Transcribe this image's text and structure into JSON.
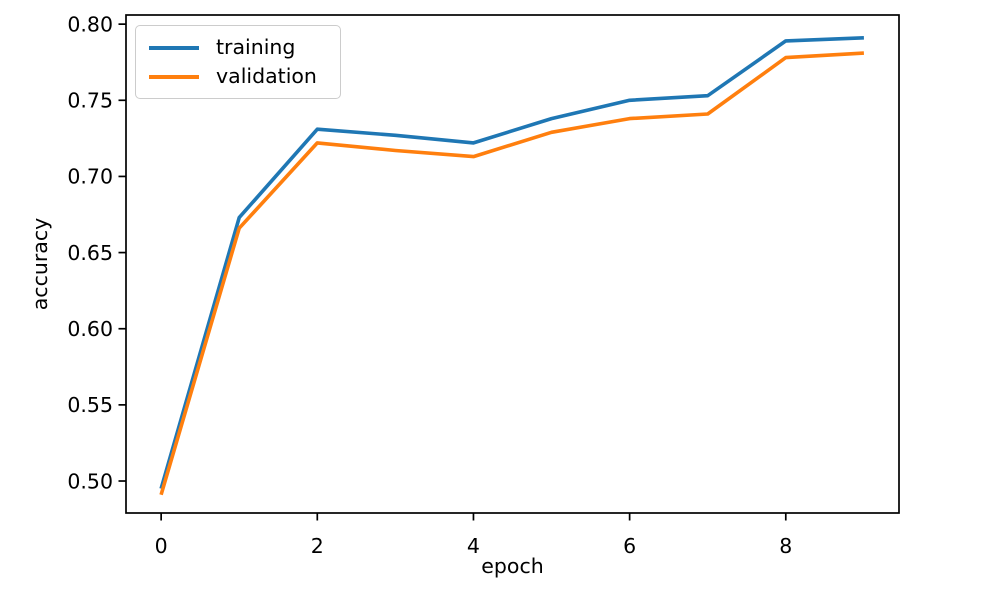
{
  "figure": {
    "background": "#ffffff",
    "axes_color": "#000000",
    "text_color": "#000000",
    "legend_border_color": "#cccccc"
  },
  "chart_data": {
    "type": "line",
    "title": "",
    "xlabel": "epoch",
    "ylabel": "accuracy",
    "grid": false,
    "legend_position": "upper left",
    "x": [
      0,
      1,
      2,
      3,
      4,
      5,
      6,
      7,
      8,
      9
    ],
    "series": [
      {
        "name": "training",
        "color": "#1f77b4",
        "values": [
          0.495,
          0.673,
          0.731,
          0.727,
          0.722,
          0.738,
          0.75,
          0.753,
          0.789,
          0.791
        ]
      },
      {
        "name": "validation",
        "color": "#ff7f0e",
        "values": [
          0.491,
          0.666,
          0.722,
          0.717,
          0.713,
          0.729,
          0.738,
          0.741,
          0.778,
          0.781
        ]
      }
    ],
    "xlim": [
      -0.45,
      9.45
    ],
    "ylim": [
      0.479,
      0.806
    ],
    "xticks": [
      0,
      2,
      4,
      6,
      8
    ],
    "xtick_labels": [
      "0",
      "2",
      "4",
      "6",
      "8"
    ],
    "yticks": [
      0.5,
      0.55,
      0.6,
      0.65,
      0.7,
      0.75,
      0.8
    ],
    "ytick_labels": [
      "0.50",
      "0.55",
      "0.60",
      "0.65",
      "0.70",
      "0.75",
      "0.80"
    ]
  }
}
